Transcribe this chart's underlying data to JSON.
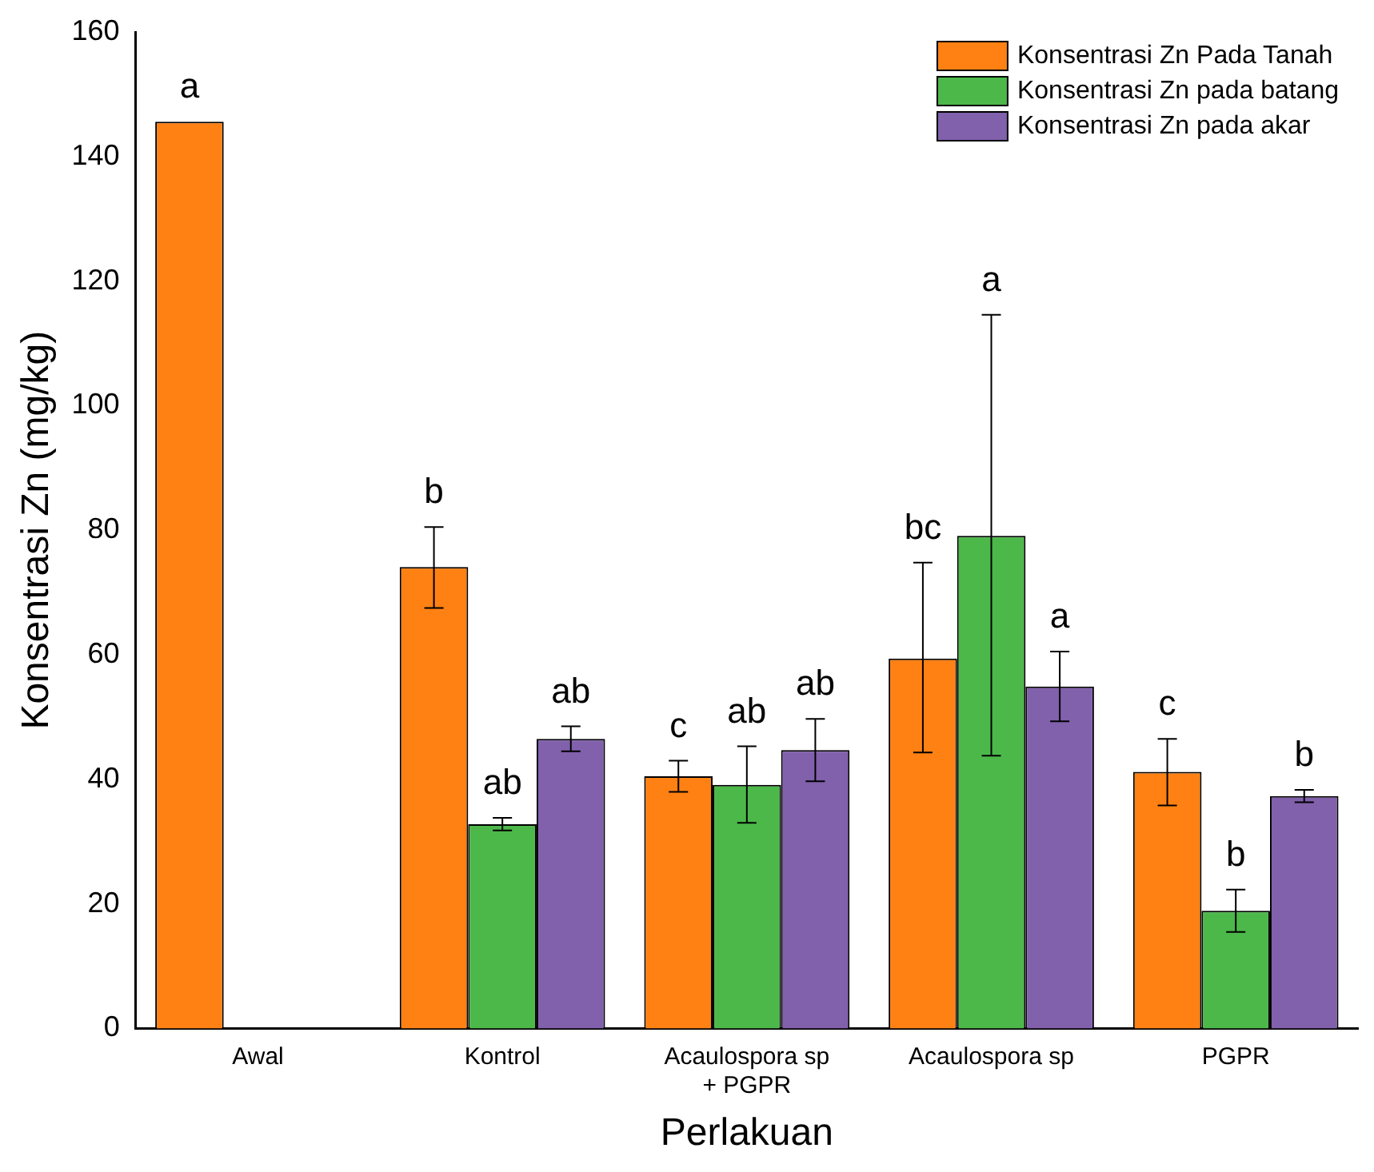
{
  "chart_data": {
    "type": "bar",
    "xlabel": "Perlakuan",
    "ylabel": "Konsentrasi Zn (mg/kg)",
    "categories": [
      "Awal",
      "Kontrol",
      "Acaulospora sp\n+ PGPR",
      "Acaulospora sp",
      "PGPR"
    ],
    "series": [
      {
        "name": "Konsentrasi Zn Pada Tanah",
        "color": "#ff8113",
        "values": [
          145.6,
          74.1,
          40.5,
          59.4,
          41.2
        ],
        "errors": [
          null,
          [
            67.5,
            80.5
          ],
          [
            38,
            43
          ],
          [
            44.3,
            74.8
          ],
          [
            35.8,
            46.5
          ]
        ]
      },
      {
        "name": "Konsentrasi Zn pada batang",
        "color": "#4cb84a",
        "values": [
          null,
          32.8,
          39.1,
          79.1,
          18.9
        ],
        "errors": [
          null,
          [
            31.8,
            33.8
          ],
          [
            33,
            45.3
          ],
          [
            43.8,
            114.6
          ],
          [
            15.5,
            22.3
          ]
        ]
      },
      {
        "name": "Konsentrasi Zn pada akar",
        "color": "#8160ac",
        "values": [
          null,
          46.5,
          44.7,
          54.9,
          37.3
        ],
        "errors": [
          null,
          [
            44.5,
            48.5
          ],
          [
            39.7,
            49.7
          ],
          [
            49.3,
            60.5
          ],
          [
            36.3,
            38.3
          ]
        ]
      }
    ],
    "annotations": [
      "a",
      "b",
      "ab",
      "ab",
      "c",
      "ab",
      "ab",
      "bc",
      "a",
      "a",
      "c",
      "b",
      "b"
    ],
    "ylim": [
      0,
      160
    ],
    "yticks": [
      0,
      20,
      40,
      60,
      80,
      100,
      120,
      140,
      160
    ],
    "grid": false,
    "legend": "top right"
  }
}
